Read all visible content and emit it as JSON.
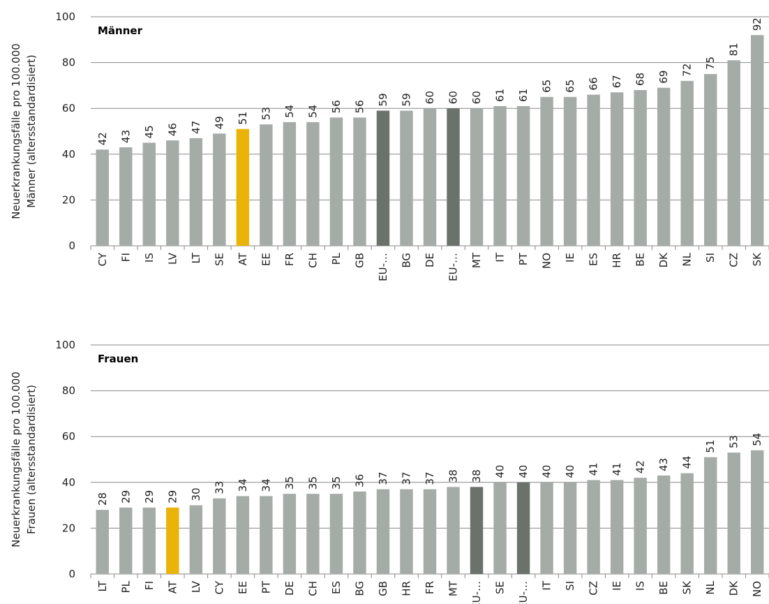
{
  "colors": {
    "default": "#a5aba7",
    "highlight": "#eab308",
    "eu": "#6b726c",
    "grid": "#888888"
  },
  "chart_data": [
    {
      "type": "bar",
      "title": "Männer",
      "ylabel": "Neuerkrankungsfälle pro 100.000 Männer (altersstandardisiert)",
      "ylabel_lines": [
        "Neuerkrankungsfälle pro 100.000",
        "Männer (altersstandardisiert)"
      ],
      "ylim": [
        0,
        100
      ],
      "yticks": [
        "0",
        "20",
        "40",
        "60",
        "80",
        "100"
      ],
      "categories": [
        "CY",
        "FI",
        "IS",
        "LV",
        "LT",
        "SE",
        "AT",
        "EE",
        "FR",
        "CH",
        "PL",
        "GB",
        "EU-…",
        "BG",
        "DE",
        "EU-…",
        "MT",
        "IT",
        "PT",
        "NO",
        "IE",
        "ES",
        "HR",
        "BE",
        "DK",
        "NL",
        "SI",
        "CZ",
        "SK"
      ],
      "values": [
        42,
        43,
        45,
        46,
        47,
        49,
        51,
        53,
        54,
        54,
        56,
        56,
        59,
        59,
        60,
        60,
        60,
        61,
        61,
        65,
        65,
        66,
        67,
        68,
        69,
        72,
        75,
        81,
        92
      ],
      "value_labels": [
        "42",
        "43",
        "45",
        "46",
        "47",
        "49",
        "51",
        "53",
        "54",
        "54",
        "56",
        "56",
        "59",
        "59",
        "60",
        "60",
        "60",
        "61",
        "61",
        "65",
        "65",
        "66",
        "67",
        "68",
        "69",
        "72",
        "75",
        "81",
        "92"
      ],
      "highlight": [
        "default",
        "default",
        "default",
        "default",
        "default",
        "default",
        "highlight",
        "default",
        "default",
        "default",
        "default",
        "default",
        "eu",
        "default",
        "default",
        "eu",
        "default",
        "default",
        "default",
        "default",
        "default",
        "default",
        "default",
        "default",
        "default",
        "default",
        "default",
        "default",
        "default"
      ],
      "grid": true
    },
    {
      "type": "bar",
      "title": "Frauen",
      "ylabel": "Neuerkrankungsfälle pro 100.000 Frauen (altersstandardisiert)",
      "ylabel_lines": [
        "Neuerkrankungsfälle pro 100.000",
        "Frauen (altersstandardisiert)"
      ],
      "ylim": [
        0,
        100
      ],
      "yticks": [
        "0",
        "20",
        "40",
        "60",
        "80",
        "100"
      ],
      "categories": [
        "LT",
        "PL",
        "FI",
        "AT",
        "LV",
        "CY",
        "EE",
        "PT",
        "DE",
        "CH",
        "ES",
        "BG",
        "GB",
        "HR",
        "FR",
        "MT",
        "EU-…",
        "SE",
        "EU-…",
        "IT",
        "SI",
        "CZ",
        "IE",
        "IS",
        "BE",
        "SK",
        "NL",
        "DK",
        "NO"
      ],
      "values": [
        28,
        29,
        29,
        29,
        30,
        33,
        34,
        34,
        35,
        35,
        35,
        36,
        37,
        37,
        37,
        38,
        38,
        40,
        40,
        40,
        40,
        41,
        41,
        42,
        43,
        44,
        51,
        53,
        54
      ],
      "value_labels": [
        "28",
        "29",
        "29",
        "29",
        "30",
        "33",
        "34",
        "34",
        "35",
        "35",
        "35",
        "36",
        "37",
        "37",
        "37",
        "38",
        "38",
        "40",
        "40",
        "40",
        "40",
        "41",
        "41",
        "42",
        "43",
        "44",
        "51",
        "53",
        "54"
      ],
      "highlight": [
        "default",
        "default",
        "default",
        "highlight",
        "default",
        "default",
        "default",
        "default",
        "default",
        "default",
        "default",
        "default",
        "default",
        "default",
        "default",
        "default",
        "eu",
        "default",
        "eu",
        "default",
        "default",
        "default",
        "default",
        "default",
        "default",
        "default",
        "default",
        "default",
        "default"
      ],
      "grid": true
    }
  ]
}
